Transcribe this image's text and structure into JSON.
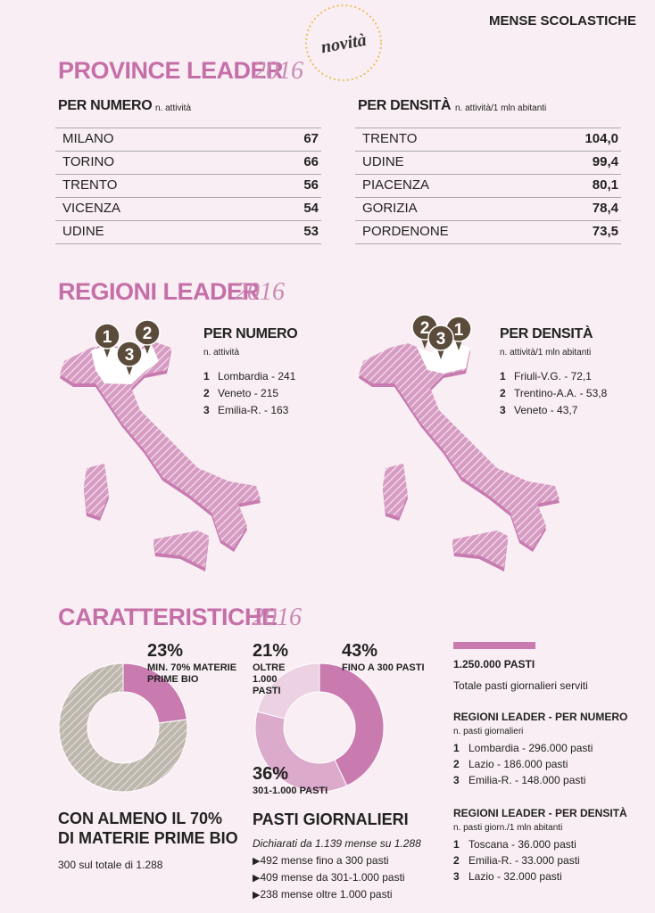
{
  "header": {
    "section": "MENSE SCOLASTICHE",
    "badge": "novità"
  },
  "province": {
    "title": "PROVINCE LEADER",
    "year": "2016",
    "by_number": {
      "heading": "PER NUMERO",
      "unit": "n. attività",
      "rows": [
        [
          "MILANO",
          "67"
        ],
        [
          "TORINO",
          "66"
        ],
        [
          "TRENTO",
          "56"
        ],
        [
          "VICENZA",
          "54"
        ],
        [
          "UDINE",
          "53"
        ]
      ]
    },
    "by_density": {
      "heading": "PER DENSITÀ",
      "unit": "n. attività/1 mln abitanti",
      "rows": [
        [
          "TRENTO",
          "104,0"
        ],
        [
          "UDINE",
          "99,4"
        ],
        [
          "PIACENZA",
          "80,1"
        ],
        [
          "GORIZIA",
          "78,4"
        ],
        [
          "PORDENONE",
          "73,5"
        ]
      ]
    }
  },
  "regioni": {
    "title": "REGIONI LEADER",
    "year": "2016",
    "by_number": {
      "heading": "PER NUMERO",
      "unit": "n. attività",
      "items": [
        [
          "1",
          "Lombardia - 241"
        ],
        [
          "2",
          "Veneto - 215"
        ],
        [
          "3",
          "Emilia-R. - 163"
        ]
      ]
    },
    "by_density": {
      "heading": "PER DENSITÀ",
      "unit": "n. attività/1 mln abitanti",
      "items": [
        [
          "1",
          "Friuli-V.G. - 72,1"
        ],
        [
          "2",
          "Trentino-A.A. - 53,8"
        ],
        [
          "3",
          "Veneto - 43,7"
        ]
      ]
    }
  },
  "caratteristiche": {
    "title": "CARATTERISTICHE",
    "year": "2016",
    "bio": {
      "segments": [
        {
          "value": 23,
          "label": "23%",
          "caption": "MIN. 70% MATERIE PRIME BIO",
          "color": "#c97bb0"
        },
        {
          "value": 77,
          "color": "#bdb7ae"
        }
      ],
      "heading": [
        "CON ALMENO IL 70%",
        "DI MATERIE PRIME BIO"
      ],
      "note": "300 sul totale di 1.288"
    },
    "pasti": {
      "segments": [
        {
          "value": 43,
          "label": "43%",
          "caption": "FINO A 300 PASTI",
          "color": "#c97bb0"
        },
        {
          "value": 36,
          "label": "36%",
          "caption": "301-1.000 PASTI",
          "color": "#dcaacb"
        },
        {
          "value": 21,
          "label": "21%",
          "caption": "OLTRE 1.000 PASTI",
          "color": "#ebd1e2"
        }
      ],
      "heading": "PASTI GIORNALIERI",
      "note": "Dichiarati da 1.139 mense su 1.288",
      "bullets": [
        "492 mense fino a 300 pasti",
        "409 mense da 301-1.000 pasti",
        "238 mense oltre 1.000 pasti"
      ]
    },
    "totale": {
      "value": "1.250.000 PASTI",
      "note": "Totale pasti giornalieri serviti"
    },
    "lists": [
      {
        "heading": "REGIONI LEADER - PER NUMERO",
        "unit": "n. pasti giornalieri",
        "items": [
          [
            "1",
            "Lombardia - 296.000 pasti"
          ],
          [
            "2",
            "Lazio - 186.000 pasti"
          ],
          [
            "3",
            "Emilia-R. - 148.000 pasti"
          ]
        ]
      },
      {
        "heading": "REGIONI LEADER - PER DENSITÀ",
        "unit": "n. pasti giorn./1 mln abitanti",
        "items": [
          [
            "1",
            "Toscana - 36.000 pasti"
          ],
          [
            "2",
            "Emilia-R. - 33.000 pasti"
          ],
          [
            "3",
            "Lazio - 32.000 pasti"
          ]
        ]
      }
    ]
  }
}
